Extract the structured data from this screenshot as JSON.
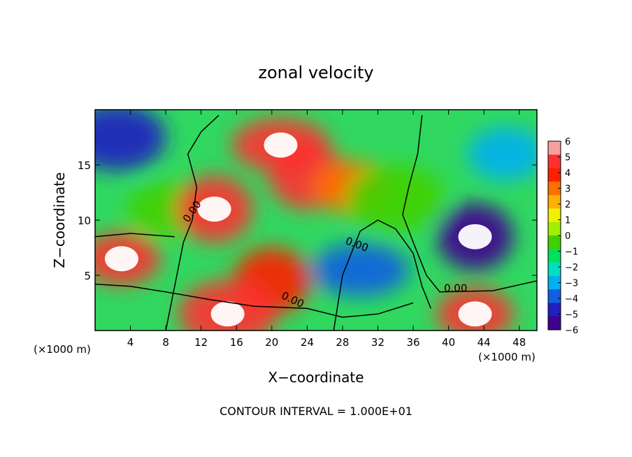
{
  "chart_data": {
    "type": "heatmap",
    "title": "zonal velocity",
    "xlabel": "X−coordinate",
    "ylabel": "Z−coordinate",
    "x_unit": "(×1000 m)",
    "z_unit": "(×1000 m)",
    "xlim": [
      0,
      50
    ],
    "zlim": [
      0,
      20
    ],
    "x_ticks": [
      4,
      8,
      12,
      16,
      20,
      24,
      28,
      32,
      36,
      40,
      44,
      48
    ],
    "z_ticks": [
      5,
      10,
      15
    ],
    "colorbar": {
      "min": -6,
      "max": 6,
      "ticks": [
        6,
        5,
        4,
        3,
        2,
        1,
        0,
        -1,
        -2,
        -3,
        -4,
        -5,
        -6
      ],
      "tick_labels": [
        "6",
        "5",
        "4",
        "3",
        "2",
        "1",
        "0",
        "−1",
        "−2",
        "−3",
        "−4",
        "−5",
        "−6"
      ],
      "colors": [
        "#f8a0a0",
        "#ff3030",
        "#ff2000",
        "#ff7000",
        "#ffb000",
        "#f0f000",
        "#a0f000",
        "#40d000",
        "#00e060",
        "#00e0c0",
        "#00b0f0",
        "#1060e0",
        "#2020c0",
        "#400090"
      ]
    },
    "contour_labels": [
      "0.00",
      "0.00",
      "0.00",
      "0.00"
    ],
    "contour_interval_text": "CONTOUR INTERVAL = 1.000E+01",
    "field_features": [
      {
        "x": 2.5,
        "z": 17.5,
        "value": -5
      },
      {
        "x": 8,
        "z": 11,
        "value": 0
      },
      {
        "x": 13.5,
        "z": 11,
        "value": 7
      },
      {
        "x": 21,
        "z": 16.8,
        "value": 7
      },
      {
        "x": 24,
        "z": 14,
        "value": 5
      },
      {
        "x": 29,
        "z": 13,
        "value": 3
      },
      {
        "x": 34,
        "z": 12,
        "value": 0
      },
      {
        "x": 46.5,
        "z": 16,
        "value": -3
      },
      {
        "x": 43,
        "z": 8.5,
        "value": -8
      },
      {
        "x": 30,
        "z": 5.5,
        "value": -4
      },
      {
        "x": 20,
        "z": 4.5,
        "value": 4
      },
      {
        "x": 3,
        "z": 6.5,
        "value": 7
      },
      {
        "x": 15,
        "z": 1.5,
        "value": 8
      },
      {
        "x": 43,
        "z": 1.5,
        "value": 8
      }
    ]
  }
}
